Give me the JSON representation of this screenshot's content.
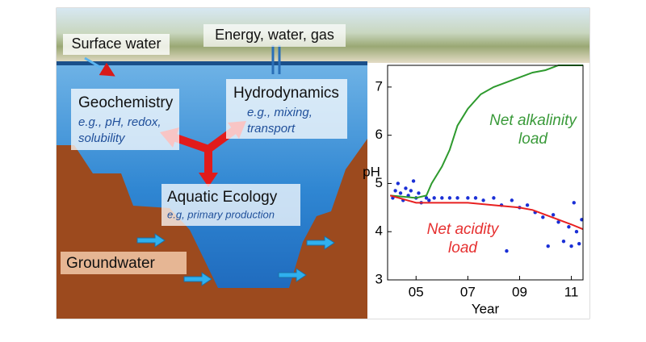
{
  "diagram": {
    "surface_water": "Surface water",
    "inputs": "Energy, water, gas",
    "geochemistry": {
      "title": "Geochemistry",
      "examples": [
        "e.g., pH, redox,",
        "solubility"
      ]
    },
    "hydrodynamics": {
      "title": "Hydrodynamics",
      "examples": [
        "e.g., mixing,",
        "transport"
      ]
    },
    "aquatic_ecology": {
      "title": "Aquatic Ecology",
      "examples": [
        "e.g, primary production"
      ]
    },
    "groundwater": "Groundwater"
  },
  "chart_data": {
    "type": "line",
    "xlabel": "Year",
    "ylabel": "pH",
    "xlim": [
      2003.9,
      2011.45
    ],
    "ylim": [
      3,
      7.45
    ],
    "xticks": [
      {
        "value": 2005,
        "label": "05"
      },
      {
        "value": 2007,
        "label": "07"
      },
      {
        "value": 2009,
        "label": "09"
      },
      {
        "value": 2011,
        "label": "11"
      }
    ],
    "yticks": [
      3,
      4,
      5,
      6,
      7
    ],
    "series": [
      {
        "type": "scatter",
        "color": "#1a2fd6",
        "x": [
          2004.1,
          2004.2,
          2004.3,
          2004.4,
          2004.5,
          2004.6,
          2004.7,
          2004.8,
          2004.9,
          2005.0,
          2005.1,
          2005.2,
          2005.4,
          2005.5,
          2005.7,
          2006.0,
          2006.3,
          2006.6,
          2007.0,
          2007.3,
          2007.6,
          2008.0,
          2008.3,
          2008.5,
          2008.7,
          2009.0,
          2009.3,
          2009.6,
          2009.9,
          2010.1,
          2010.3,
          2010.5,
          2010.7,
          2010.9,
          2011.0,
          2011.1,
          2011.2,
          2011.3,
          2011.4
        ],
        "values": [
          4.7,
          4.85,
          5.0,
          4.8,
          4.65,
          4.9,
          4.75,
          4.85,
          5.05,
          4.7,
          4.8,
          4.6,
          4.7,
          4.65,
          4.7,
          4.7,
          4.7,
          4.7,
          4.7,
          4.7,
          4.65,
          4.7,
          4.55,
          3.6,
          4.65,
          4.5,
          4.55,
          4.4,
          4.3,
          3.7,
          4.35,
          4.2,
          3.8,
          4.1,
          3.7,
          4.6,
          4.0,
          3.75,
          4.25
        ]
      },
      {
        "type": "line",
        "color": "#2e9a2e",
        "x": [
          2004.0,
          2005.0,
          2005.4,
          2005.6,
          2006.0,
          2006.3,
          2006.6,
          2007.0,
          2007.5,
          2008.0,
          2008.5,
          2009.0,
          2009.5,
          2010.0,
          2010.5,
          2011.45
        ],
        "values": [
          4.75,
          4.7,
          4.75,
          5.0,
          5.35,
          5.7,
          6.2,
          6.55,
          6.85,
          7.0,
          7.1,
          7.2,
          7.3,
          7.35,
          7.45,
          7.45
        ]
      },
      {
        "type": "line",
        "color": "#e82020",
        "x": [
          2004.0,
          2005.0,
          2006.0,
          2007.0,
          2008.0,
          2009.0,
          2009.5,
          2010.0,
          2010.5,
          2011.0,
          2011.45
        ],
        "values": [
          4.75,
          4.6,
          4.6,
          4.6,
          4.55,
          4.5,
          4.45,
          4.35,
          4.25,
          4.15,
          4.05
        ]
      }
    ],
    "annotations": [
      {
        "lines": [
          "Net alkalinity",
          "load"
        ],
        "color": "#3a9a3a"
      },
      {
        "lines": [
          "Net acidity",
          "load"
        ],
        "color": "#e63030"
      }
    ]
  }
}
